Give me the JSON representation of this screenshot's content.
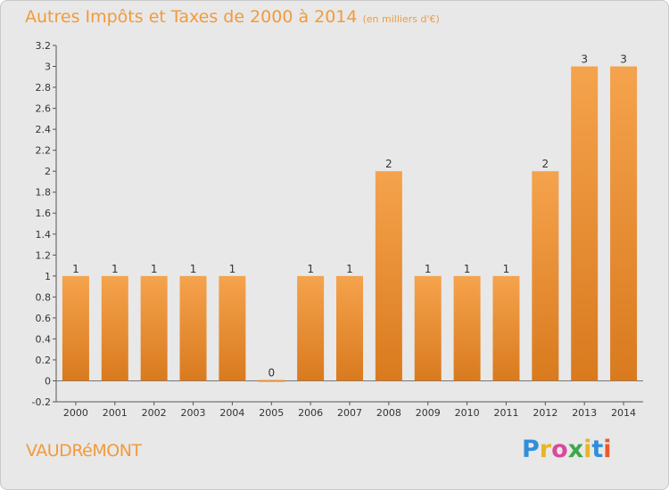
{
  "title": "Autres Impôts et Taxes de 2000 à 2014",
  "subtitle": "(en milliers d'€)",
  "commune": "VAUDRéMONT",
  "logo": {
    "letters": [
      "P",
      "r",
      "o",
      "x",
      "i",
      "t",
      "i"
    ],
    "colors": [
      "#2f8fd8",
      "#e8b428",
      "#d84a9c",
      "#3ea84a",
      "#e8b428",
      "#2f8fd8",
      "#e85a2a"
    ]
  },
  "colors": {
    "bar_top": "#f5a34d",
    "bar_bottom": "#d97a1e",
    "accent": "#f39a3a"
  },
  "chart_data": {
    "type": "bar",
    "categories": [
      "2000",
      "2001",
      "2002",
      "2003",
      "2004",
      "2005",
      "2006",
      "2007",
      "2008",
      "2009",
      "2010",
      "2011",
      "2012",
      "2013",
      "2014"
    ],
    "values": [
      1,
      1,
      1,
      1,
      1,
      0,
      1,
      1,
      2,
      1,
      1,
      1,
      2,
      3,
      3
    ],
    "data_labels": [
      "1",
      "1",
      "1",
      "1",
      "1",
      "0",
      "1",
      "1",
      "2",
      "1",
      "1",
      "1",
      "2",
      "3",
      "3"
    ],
    "ylim": [
      -0.2,
      3.2
    ],
    "yticks": [
      -0.2,
      0,
      0.2,
      0.4,
      0.6,
      0.8,
      1,
      1.2,
      1.4,
      1.6,
      1.8,
      2,
      2.2,
      2.4,
      2.6,
      2.8,
      3,
      3.2
    ],
    "ytick_labels": [
      "-0.2",
      "0",
      "0.2",
      "0.4",
      "0.6",
      "0.8",
      "1",
      "1.2",
      "1.4",
      "1.6",
      "1.8",
      "2",
      "2.2",
      "2.4",
      "2.6",
      "2.8",
      "3",
      "3.2"
    ],
    "grid": false
  }
}
